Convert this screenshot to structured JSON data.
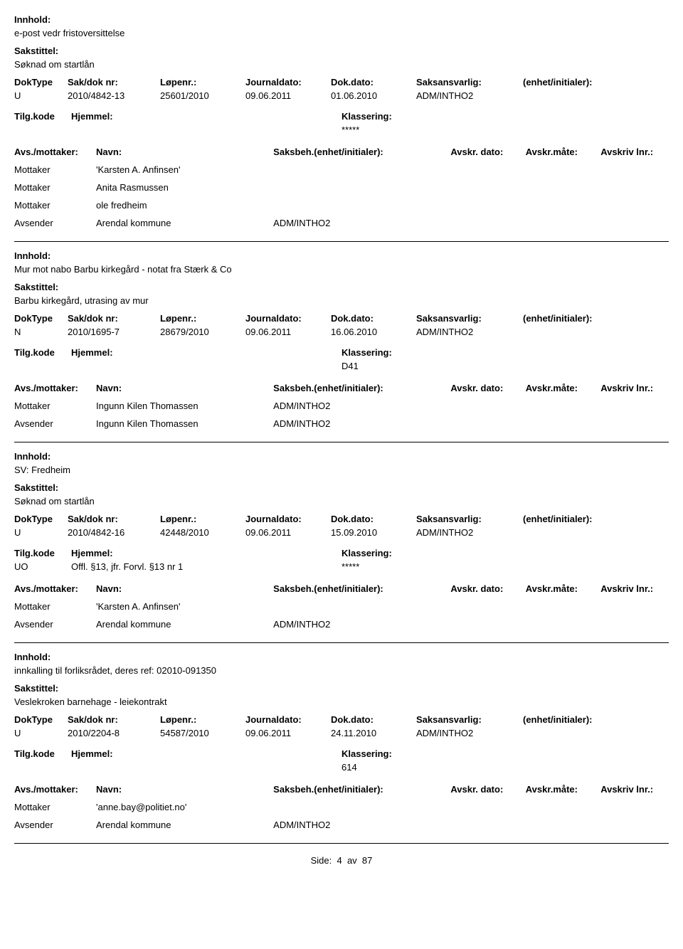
{
  "labels": {
    "innhold": "Innhold:",
    "sakstittel": "Sakstittel:",
    "doktype": "DokType",
    "sakdok": "Sak/dok nr:",
    "lopenr": "Løpenr.:",
    "journaldato": "Journaldato:",
    "dokdato": "Dok.dato:",
    "saksansvarlig": "Saksansvarlig:",
    "enhet_initialer": "(enhet/initialer):",
    "tilgkode": "Tilg.kode",
    "hjemmel": "Hjemmel:",
    "klassering": "Klassering:",
    "avs_mottaker": "Avs./mottaker:",
    "navn": "Navn:",
    "saksbeh_enhet": "Saksbeh.(enhet/initialer):",
    "avskr_dato": "Avskr. dato:",
    "avskr_mate": "Avskr.måte:",
    "avskriv_lnr": "Avskriv lnr.:"
  },
  "entries": [
    {
      "innhold": "e-post vedr fristoversittelse",
      "sakstittel": "Søknad om startlån",
      "doktype": "U",
      "sakdok": "2010/4842-13",
      "lopenr": "25601/2010",
      "journaldato": "09.06.2011",
      "dokdato": "01.06.2010",
      "saksansvarlig": "ADM/INTHO2",
      "enhet": "",
      "tilgkode": "",
      "hjemmel": "",
      "klassering": "*****",
      "parties": [
        {
          "role": "Mottaker",
          "navn": "'Karsten A. Anfinsen'",
          "saksbeh": ""
        },
        {
          "role": "Mottaker",
          "navn": "Anita Rasmussen",
          "saksbeh": ""
        },
        {
          "role": "Mottaker",
          "navn": "ole fredheim",
          "saksbeh": ""
        },
        {
          "role": "Avsender",
          "navn": "Arendal kommune",
          "saksbeh": "ADM/INTHO2"
        }
      ]
    },
    {
      "innhold": "Mur mot nabo Barbu kirkegård - notat fra Stærk & Co",
      "sakstittel": "Barbu kirkegård, utrasing av mur",
      "doktype": "N",
      "sakdok": "2010/1695-7",
      "lopenr": "28679/2010",
      "journaldato": "09.06.2011",
      "dokdato": "16.06.2010",
      "saksansvarlig": "ADM/INTHO2",
      "enhet": "",
      "tilgkode": "",
      "hjemmel": "",
      "klassering": "D41",
      "parties": [
        {
          "role": "Mottaker",
          "navn": "Ingunn Kilen Thomassen",
          "saksbeh": "ADM/INTHO2"
        },
        {
          "role": "Avsender",
          "navn": "Ingunn Kilen Thomassen",
          "saksbeh": "ADM/INTHO2"
        }
      ]
    },
    {
      "innhold": "SV: Fredheim",
      "sakstittel": "Søknad om startlån",
      "doktype": "U",
      "sakdok": "2010/4842-16",
      "lopenr": "42448/2010",
      "journaldato": "09.06.2011",
      "dokdato": "15.09.2010",
      "saksansvarlig": "ADM/INTHO2",
      "enhet": "",
      "tilgkode": "UO",
      "hjemmel": "Offl. §13, jfr. Forvl. §13 nr 1",
      "klassering": "*****",
      "parties": [
        {
          "role": "Mottaker",
          "navn": "'Karsten A. Anfinsen'",
          "saksbeh": ""
        },
        {
          "role": "Avsender",
          "navn": "Arendal kommune",
          "saksbeh": "ADM/INTHO2"
        }
      ]
    },
    {
      "innhold": "innkalling til forliksrådet, deres ref: 02010-091350",
      "sakstittel": "Veslekroken barnehage - leiekontrakt",
      "doktype": "U",
      "sakdok": "2010/2204-8",
      "lopenr": "54587/2010",
      "journaldato": "09.06.2011",
      "dokdato": "24.11.2010",
      "saksansvarlig": "ADM/INTHO2",
      "enhet": "",
      "tilgkode": "",
      "hjemmel": "",
      "klassering": "614",
      "parties": [
        {
          "role": "Mottaker",
          "navn": "'anne.bay@politiet.no'",
          "saksbeh": ""
        },
        {
          "role": "Avsender",
          "navn": "Arendal kommune",
          "saksbeh": "ADM/INTHO2"
        }
      ]
    }
  ],
  "footer": {
    "prefix": "Side:",
    "page": "4",
    "sep": "av",
    "total": "87"
  }
}
